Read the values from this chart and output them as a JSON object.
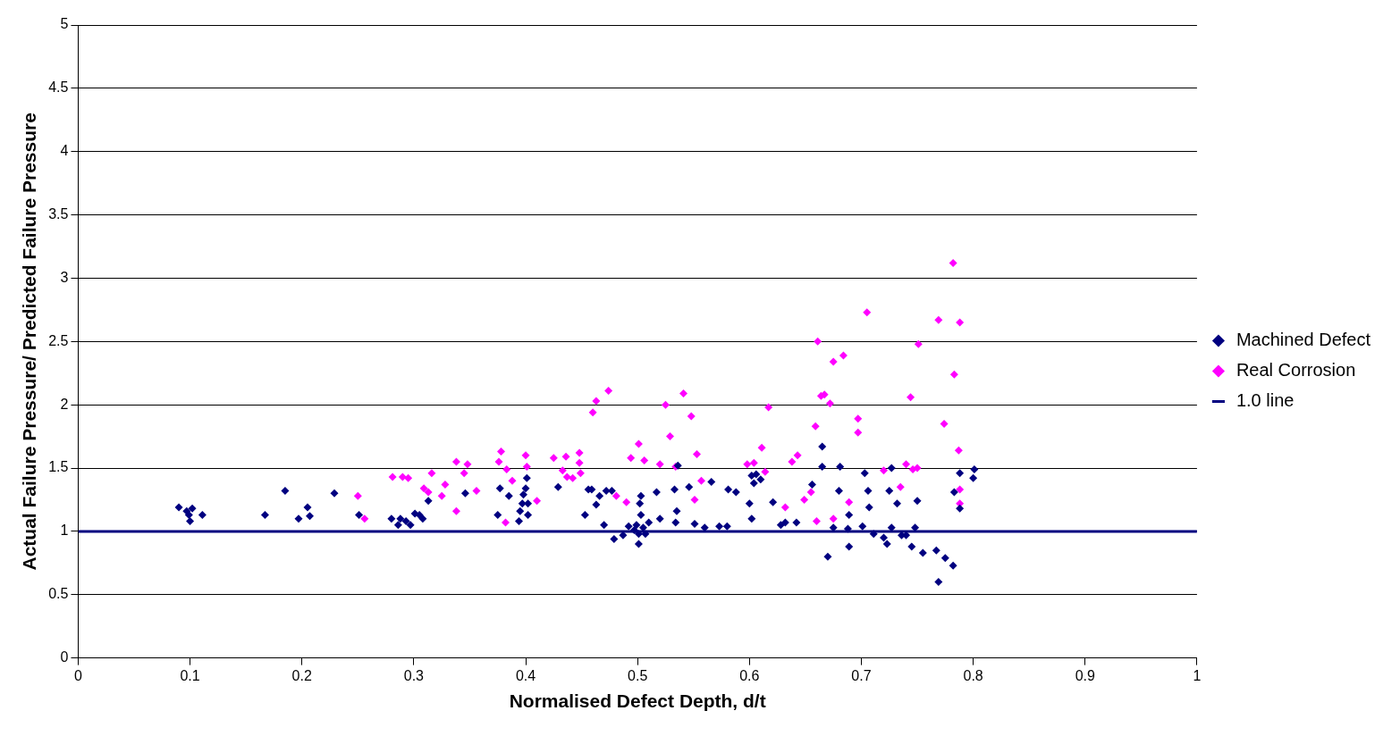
{
  "chart_data": {
    "type": "scatter",
    "xlabel": "Normalised Defect Depth, d/t",
    "ylabel": "Actual Failure Pressure/ Predicted Failure Pressure",
    "xlim": [
      0,
      1
    ],
    "ylim": [
      0,
      5
    ],
    "xticks": [
      0,
      0.1,
      0.2,
      0.3,
      0.4,
      0.5,
      0.6,
      0.7,
      0.8,
      0.9,
      1
    ],
    "yticks": [
      0,
      0.5,
      1,
      1.5,
      2,
      2.5,
      3,
      3.5,
      4,
      4.5,
      5
    ],
    "grid": "y",
    "legend": "right",
    "marker": "diamond",
    "series": [
      {
        "name": "Machined Defect",
        "color": "#000080",
        "x": [
          0.09,
          0.097,
          0.1,
          0.099,
          0.102,
          0.111,
          0.167,
          0.185,
          0.197,
          0.205,
          0.207,
          0.229,
          0.251,
          0.28,
          0.286,
          0.288,
          0.293,
          0.297,
          0.301,
          0.305,
          0.308,
          0.313,
          0.346,
          0.375,
          0.377,
          0.385,
          0.394,
          0.395,
          0.397,
          0.398,
          0.4,
          0.401,
          0.402,
          0.402,
          0.429,
          0.453,
          0.456,
          0.459,
          0.463,
          0.466,
          0.47,
          0.472,
          0.477,
          0.479,
          0.487,
          0.492,
          0.497,
          0.499,
          0.501,
          0.501,
          0.502,
          0.503,
          0.503,
          0.505,
          0.507,
          0.51,
          0.517,
          0.52,
          0.533,
          0.535,
          0.536,
          0.534,
          0.546,
          0.551,
          0.56,
          0.566,
          0.573,
          0.58,
          0.581,
          0.588,
          0.6,
          0.602,
          0.602,
          0.604,
          0.606,
          0.61,
          0.621,
          0.628,
          0.632,
          0.642,
          0.656,
          0.665,
          0.665,
          0.67,
          0.675,
          0.681,
          0.68,
          0.689,
          0.689,
          0.688,
          0.701,
          0.703,
          0.706,
          0.707,
          0.711,
          0.72,
          0.723,
          0.725,
          0.727,
          0.727,
          0.732,
          0.736,
          0.74,
          0.745,
          0.748,
          0.75,
          0.755,
          0.767,
          0.769,
          0.775,
          0.782,
          0.788,
          0.788,
          0.8,
          0.801,
          0.783
        ],
        "values": [
          1.19,
          1.16,
          1.08,
          1.13,
          1.18,
          1.13,
          1.13,
          1.32,
          1.1,
          1.19,
          1.12,
          1.3,
          1.13,
          1.1,
          1.05,
          1.1,
          1.08,
          1.05,
          1.14,
          1.13,
          1.1,
          1.24,
          1.3,
          1.13,
          1.34,
          1.28,
          1.08,
          1.16,
          1.22,
          1.29,
          1.34,
          1.42,
          1.22,
          1.13,
          1.35,
          1.13,
          1.33,
          1.33,
          1.21,
          1.28,
          1.05,
          1.32,
          1.32,
          0.94,
          0.97,
          1.04,
          1.01,
          1.05,
          0.98,
          0.9,
          1.22,
          1.28,
          1.13,
          1.03,
          0.98,
          1.07,
          1.31,
          1.1,
          1.33,
          1.16,
          1.52,
          1.07,
          1.35,
          1.06,
          1.03,
          1.39,
          1.04,
          1.04,
          1.33,
          1.31,
          1.22,
          1.1,
          1.44,
          1.38,
          1.45,
          1.41,
          1.23,
          1.05,
          1.07,
          1.07,
          1.37,
          1.67,
          1.51,
          0.8,
          1.03,
          1.51,
          1.32,
          0.88,
          1.13,
          1.02,
          1.04,
          1.46,
          1.32,
          1.19,
          0.98,
          0.95,
          0.9,
          1.32,
          1.5,
          1.03,
          1.22,
          0.97,
          0.97,
          0.88,
          1.03,
          1.24,
          0.83,
          0.85,
          0.6,
          0.79,
          0.73,
          1.18,
          1.46,
          1.42,
          1.49,
          1.31
        ]
      },
      {
        "name": "Real Corrosion",
        "color": "#ff00ff",
        "x": [
          0.25,
          0.256,
          0.281,
          0.29,
          0.295,
          0.309,
          0.313,
          0.316,
          0.325,
          0.328,
          0.338,
          0.338,
          0.345,
          0.348,
          0.356,
          0.376,
          0.378,
          0.382,
          0.383,
          0.388,
          0.4,
          0.401,
          0.41,
          0.425,
          0.433,
          0.436,
          0.437,
          0.442,
          0.448,
          0.448,
          0.449,
          0.46,
          0.463,
          0.474,
          0.481,
          0.494,
          0.501,
          0.506,
          0.49,
          0.52,
          0.525,
          0.529,
          0.534,
          0.541,
          0.548,
          0.551,
          0.553,
          0.557,
          0.598,
          0.604,
          0.611,
          0.614,
          0.617,
          0.632,
          0.638,
          0.643,
          0.649,
          0.655,
          0.659,
          0.661,
          0.66,
          0.664,
          0.667,
          0.672,
          0.675,
          0.675,
          0.684,
          0.689,
          0.697,
          0.697,
          0.705,
          0.72,
          0.735,
          0.74,
          0.744,
          0.746,
          0.75,
          0.751,
          0.769,
          0.774,
          0.782,
          0.783,
          0.788,
          0.787,
          0.788,
          0.788
        ],
        "values": [
          1.28,
          1.1,
          1.43,
          1.43,
          1.42,
          1.34,
          1.31,
          1.46,
          1.28,
          1.37,
          1.16,
          1.55,
          1.46,
          1.53,
          1.32,
          1.55,
          1.63,
          1.07,
          1.49,
          1.4,
          1.6,
          1.51,
          1.24,
          1.58,
          1.48,
          1.59,
          1.43,
          1.42,
          1.62,
          1.54,
          1.46,
          1.94,
          2.03,
          2.11,
          1.28,
          1.58,
          1.69,
          1.56,
          1.23,
          1.53,
          2.0,
          1.75,
          1.51,
          2.09,
          1.91,
          1.25,
          1.61,
          1.4,
          1.53,
          1.54,
          1.66,
          1.47,
          1.98,
          1.19,
          1.55,
          1.6,
          1.25,
          1.31,
          1.83,
          2.5,
          1.08,
          2.07,
          2.08,
          2.01,
          2.34,
          1.1,
          2.39,
          1.23,
          1.89,
          1.78,
          2.73,
          1.48,
          1.35,
          1.53,
          2.06,
          1.49,
          1.5,
          2.48,
          2.67,
          1.85,
          3.12,
          2.24,
          2.65,
          1.64,
          1.33,
          1.22
        ]
      },
      {
        "name": "1.0 line",
        "type": "line",
        "marker": "none",
        "color": "#000080",
        "x": [
          0,
          1
        ],
        "values": [
          1,
          1
        ]
      }
    ]
  }
}
